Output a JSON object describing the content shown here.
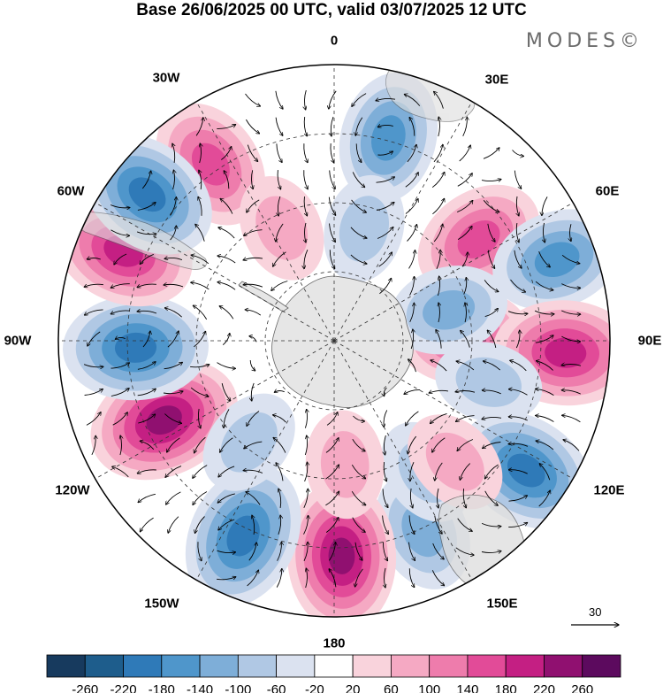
{
  "title": "Base 26/06/2025 00 UTC, valid 03/07/2025 12 UTC",
  "brand": "MODES©",
  "longitude_labels": {
    "top": "0",
    "upper_left": "30W",
    "upper_right": "30E",
    "left_upper": "60W",
    "right_upper": "60E",
    "left": "90W",
    "right": "90E",
    "left_lower": "120W",
    "right_lower": "120E",
    "lower_left": "150W",
    "lower_right": "150E",
    "bottom": "180"
  },
  "reference_vector": {
    "label": "30",
    "icon": "arrow-right-icon"
  },
  "colorbar": {
    "labels": [
      "-260",
      "-220",
      "-180",
      "-140",
      "-100",
      "-60",
      "-20",
      "20",
      "60",
      "100",
      "140",
      "180",
      "220",
      "260"
    ],
    "colors": [
      "#173a5e",
      "#1e5d8c",
      "#2f7ab8",
      "#4f96cb",
      "#7eaed8",
      "#b0c8e4",
      "#dbe2f0",
      "#ffffff",
      "#f9d3dc",
      "#f5a9c3",
      "#ee7cac",
      "#e24b98",
      "#c41f83",
      "#901070",
      "#5c0a5e"
    ]
  },
  "anomaly_centers": [
    {
      "lon": -35,
      "r": 0.78,
      "value": 150
    },
    {
      "lon": 15,
      "r": 0.76,
      "value": -150
    },
    {
      "lon": 55,
      "r": 0.64,
      "value": 150
    },
    {
      "lon": 70,
      "r": 0.86,
      "value": -150
    },
    {
      "lon": 88,
      "r": 0.47,
      "value": 150
    },
    {
      "lon": 93,
      "r": 0.84,
      "value": 200
    },
    {
      "lon": 75,
      "r": 0.43,
      "value": -100
    },
    {
      "lon": 124,
      "r": 0.84,
      "value": -190
    },
    {
      "lon": 155,
      "r": 0.76,
      "value": -110
    },
    {
      "lon": 145,
      "r": 0.58,
      "value": -60
    },
    {
      "lon": 135,
      "r": 0.62,
      "value": 60
    },
    {
      "lon": 178,
      "r": 0.78,
      "value": 220
    },
    {
      "lon": -155,
      "r": 0.78,
      "value": -210
    },
    {
      "lon": -115,
      "r": 0.68,
      "value": 230
    },
    {
      "lon": -92,
      "r": 0.72,
      "value": -200
    },
    {
      "lon": -67,
      "r": 0.83,
      "value": 190
    },
    {
      "lon": -52,
      "r": 0.86,
      "value": -190
    },
    {
      "lon": -25,
      "r": 0.45,
      "value": 60
    },
    {
      "lon": 15,
      "r": 0.42,
      "value": -60
    },
    {
      "lon": 105,
      "r": 0.58,
      "value": -60
    },
    {
      "lon": -140,
      "r": 0.48,
      "value": -60
    },
    {
      "lon": 175,
      "r": 0.45,
      "value": 60
    }
  ]
}
